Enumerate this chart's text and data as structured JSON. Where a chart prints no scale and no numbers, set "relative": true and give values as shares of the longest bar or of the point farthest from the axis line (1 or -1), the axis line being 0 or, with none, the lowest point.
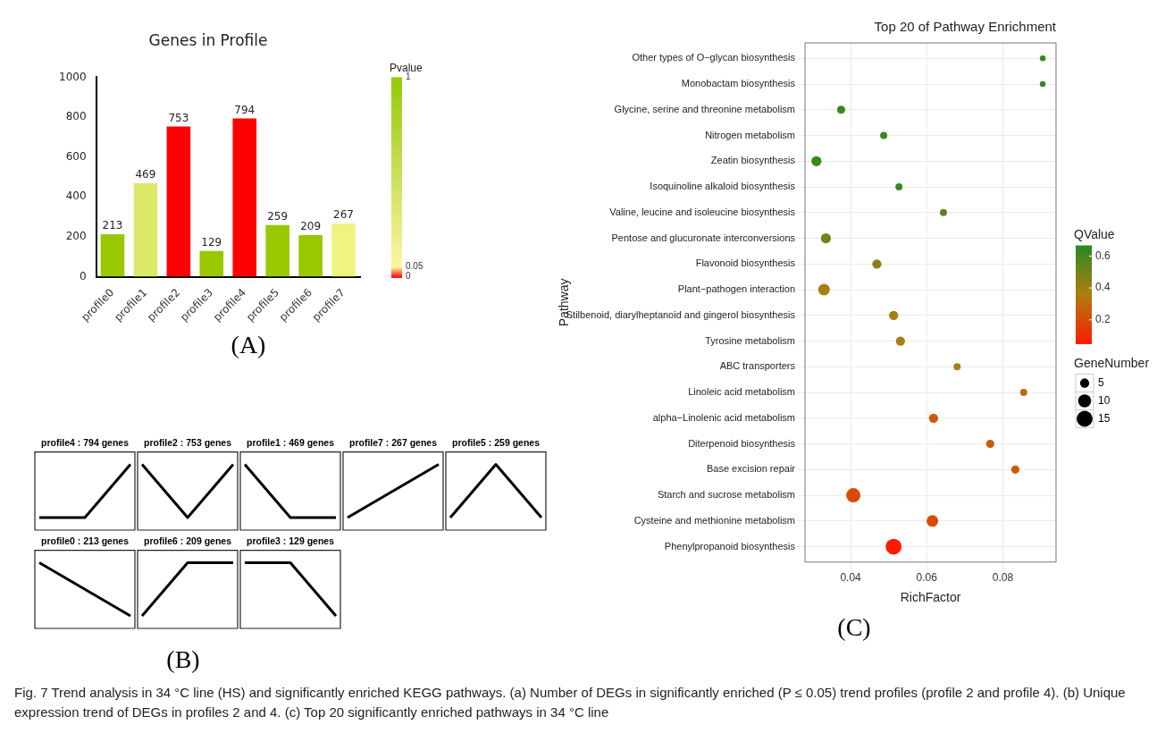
{
  "chart_data": [
    {
      "type": "bar",
      "title": "Genes in Profile",
      "categories": [
        "profile0",
        "profile1",
        "profile2",
        "profile3",
        "profile4",
        "profile5",
        "profile6",
        "profile7"
      ],
      "values": [
        213,
        469,
        753,
        129,
        794,
        259,
        209,
        267
      ],
      "colors": [
        "#99c800",
        "#dce86a",
        "#ff0000",
        "#99c800",
        "#ff0000",
        "#99c800",
        "#99c800",
        "#eef47e"
      ],
      "ylim": [
        0,
        1000
      ],
      "yticks": [
        0,
        200,
        400,
        600,
        800,
        1000
      ],
      "data_labels": true,
      "clabel": "Pvalue",
      "clim": [
        0,
        1
      ],
      "cticks": [
        1,
        0.05,
        0
      ],
      "annotations": [
        "(A)"
      ]
    },
    {
      "type": "line",
      "title": "profile4 : 794 genes",
      "relative": true,
      "categories": [
        null,
        null,
        null
      ],
      "series": [
        {
          "color": "#000000",
          "values": [
            0,
            0,
            1
          ]
        }
      ]
    },
    {
      "type": "line",
      "title": "profile2 : 753 genes",
      "relative": true,
      "categories": [
        null,
        null,
        null
      ],
      "series": [
        {
          "color": "#000000",
          "values": [
            1,
            0,
            1
          ]
        }
      ]
    },
    {
      "type": "line",
      "title": "profile1 : 469 genes",
      "relative": true,
      "categories": [
        null,
        null,
        null
      ],
      "series": [
        {
          "color": "#000000",
          "values": [
            1,
            0,
            0
          ]
        }
      ]
    },
    {
      "type": "line",
      "title": "profile7 : 267 genes",
      "relative": true,
      "categories": [
        null,
        null,
        null
      ],
      "series": [
        {
          "color": "#000000",
          "values": [
            0,
            0.5,
            1
          ]
        }
      ]
    },
    {
      "type": "line",
      "title": "profile5 : 259 genes",
      "relative": true,
      "categories": [
        null,
        null,
        null
      ],
      "series": [
        {
          "color": "#000000",
          "values": [
            0,
            1,
            0
          ]
        }
      ]
    },
    {
      "type": "line",
      "title": "profile0 : 213 genes",
      "relative": true,
      "categories": [
        null,
        null,
        null
      ],
      "series": [
        {
          "color": "#000000",
          "values": [
            1,
            0.5,
            0
          ]
        }
      ]
    },
    {
      "type": "line",
      "title": "profile6 : 209 genes",
      "relative": true,
      "categories": [
        null,
        null,
        null
      ],
      "series": [
        {
          "color": "#000000",
          "values": [
            0,
            1,
            1
          ]
        }
      ]
    },
    {
      "type": "line",
      "title": "profile3 : 129 genes",
      "relative": true,
      "categories": [
        null,
        null,
        null
      ],
      "series": [
        {
          "color": "#000000",
          "values": [
            1,
            1,
            0
          ]
        }
      ],
      "annotations": [
        "(B)"
      ]
    },
    {
      "type": "bubble",
      "title": "Top 20 of Pathway Enrichment",
      "xlabel": "RichFactor",
      "ylabel": "Pathway",
      "orientation": "horizontal",
      "categories": [
        "Other types of O−glycan biosynthesis",
        "Monobactam biosynthesis",
        "Glycine, serine and threonine metabolism",
        "Nitrogen metabolism",
        "Zeatin biosynthesis",
        "Isoquinoline alkaloid biosynthesis",
        "Valine, leucine and isoleucine biosynthesis",
        "Pentose and glucuronate interconversions",
        "Flavonoid biosynthesis",
        "Plant−pathogen interaction",
        "Stilbenoid, diarylheptanoid and gingerol biosynthesis",
        "Tyrosine metabolism",
        "ABC transporters",
        "Linoleic acid metabolism",
        "alpha−Linolenic acid metabolism",
        "Diterpenoid biosynthesis",
        "Base excision repair",
        "Starch and sucrose metabolism",
        "Cysteine and methionine metabolism",
        "Phenylpropanoid biosynthesis"
      ],
      "values": [
        0.0905,
        0.0905,
        0.0375,
        0.0487,
        0.031,
        0.0527,
        0.0644,
        0.0335,
        0.0469,
        0.033,
        0.0513,
        0.0531,
        0.068,
        0.0855,
        0.0618,
        0.0767,
        0.0833,
        0.0407,
        0.0615,
        0.0513
      ],
      "sizes": [
        2,
        2,
        4,
        3,
        6,
        3,
        3,
        6,
        5,
        8,
        5,
        5,
        3,
        3,
        5,
        4,
        4,
        12,
        8,
        15
      ],
      "cvalues": [
        0.65,
        0.65,
        0.63,
        0.63,
        0.63,
        0.63,
        0.55,
        0.5,
        0.45,
        0.38,
        0.38,
        0.38,
        0.38,
        0.3,
        0.25,
        0.25,
        0.25,
        0.2,
        0.2,
        0.05
      ],
      "clabel": "QValue",
      "clim": [
        0.05,
        0.667
      ],
      "cticks": [
        0.2,
        0.4,
        0.6
      ],
      "legend_title": "GeneNumber",
      "size_legend": [
        5,
        10,
        15
      ],
      "xlim": [
        0.028,
        0.094
      ],
      "xticks": [
        0.04,
        0.06,
        0.08
      ],
      "grid": true,
      "annotations": [
        "(C)",
        "Fig. 7 Trend analysis in 34 °C line (HS) and significantly enriched KEGG pathways. (a) Number of DEGs in significantly enriched (P ≤ 0.05) trend profiles (profile 2 and profile 4). (b) Unique expression trend of DEGs in profiles 2 and 4. (c) Top 20 significantly enriched pathways in 34 °C line"
      ]
    }
  ]
}
